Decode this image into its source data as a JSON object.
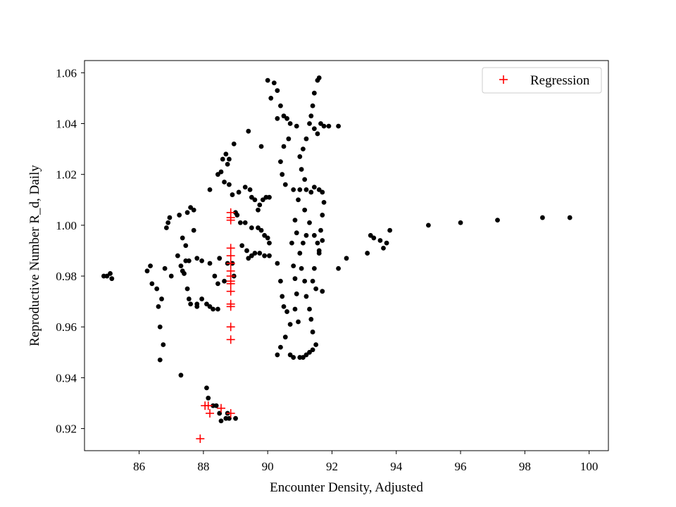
{
  "chart_data": {
    "type": "scatter",
    "title": "",
    "xlabel": "Encounter Density, Adjusted",
    "ylabel": "Reproductive Number R_d, Daily",
    "xlim": [
      84.3,
      100.6
    ],
    "ylim": [
      0.9113,
      1.0648
    ],
    "xticks": [
      86,
      88,
      90,
      92,
      94,
      96,
      98,
      100
    ],
    "yticks": [
      0.92,
      0.94,
      0.96,
      0.98,
      1.0,
      1.02,
      1.04,
      1.06
    ],
    "ytick_labels": [
      "0.92",
      "0.94",
      "0.96",
      "0.98",
      "1.00",
      "1.02",
      "1.04",
      "1.06"
    ],
    "grid": false,
    "legend_position": "top-right",
    "colors": {
      "observed": "#000000",
      "regression": "#ff0000"
    },
    "series": [
      {
        "marker": "dot",
        "color": "#000000",
        "points": [
          [
            84.9,
            0.98
          ],
          [
            85.0,
            0.98
          ],
          [
            85.1,
            0.981
          ],
          [
            85.15,
            0.979
          ],
          [
            86.25,
            0.982
          ],
          [
            86.35,
            0.984
          ],
          [
            86.4,
            0.977
          ],
          [
            86.55,
            0.975
          ],
          [
            86.6,
            0.968
          ],
          [
            86.7,
            0.971
          ],
          [
            86.65,
            0.96
          ],
          [
            86.75,
            0.953
          ],
          [
            86.65,
            0.947
          ],
          [
            86.8,
            0.983
          ],
          [
            87.0,
            0.98
          ],
          [
            87.3,
            0.941
          ],
          [
            86.85,
            0.999
          ],
          [
            86.9,
            1.001
          ],
          [
            86.95,
            1.003
          ],
          [
            87.25,
            1.004
          ],
          [
            87.6,
            1.007
          ],
          [
            87.7,
            1.006
          ],
          [
            87.5,
            1.005
          ],
          [
            87.2,
            0.988
          ],
          [
            87.3,
            0.984
          ],
          [
            87.35,
            0.982
          ],
          [
            87.4,
            0.981
          ],
          [
            87.45,
            0.986
          ],
          [
            87.55,
            0.986
          ],
          [
            87.35,
            0.995
          ],
          [
            87.45,
            0.992
          ],
          [
            87.7,
            0.998
          ],
          [
            87.8,
            0.987
          ],
          [
            87.5,
            0.975
          ],
          [
            87.55,
            0.971
          ],
          [
            87.6,
            0.969
          ],
          [
            87.8,
            0.968
          ],
          [
            87.8,
            0.969
          ],
          [
            87.95,
            0.971
          ],
          [
            88.1,
            0.969
          ],
          [
            88.2,
            0.968
          ],
          [
            88.3,
            0.967
          ],
          [
            88.45,
            0.967
          ],
          [
            87.95,
            0.986
          ],
          [
            88.2,
            0.985
          ],
          [
            88.35,
            0.98
          ],
          [
            88.45,
            0.977
          ],
          [
            88.5,
            0.987
          ],
          [
            88.65,
            0.978
          ],
          [
            88.75,
            0.985
          ],
          [
            88.9,
            0.985
          ],
          [
            88.95,
            0.98
          ],
          [
            88.1,
            0.936
          ],
          [
            88.15,
            0.932
          ],
          [
            88.3,
            0.929
          ],
          [
            88.4,
            0.929
          ],
          [
            88.5,
            0.926
          ],
          [
            88.55,
            0.923
          ],
          [
            88.7,
            0.924
          ],
          [
            88.75,
            0.926
          ],
          [
            88.8,
            0.924
          ],
          [
            89.0,
            0.924
          ],
          [
            88.2,
            1.014
          ],
          [
            88.45,
            1.02
          ],
          [
            88.55,
            1.021
          ],
          [
            88.6,
            1.026
          ],
          [
            88.7,
            1.028
          ],
          [
            88.75,
            1.024
          ],
          [
            88.8,
            1.026
          ],
          [
            88.95,
            1.032
          ],
          [
            88.65,
            1.017
          ],
          [
            88.8,
            1.016
          ],
          [
            88.9,
            1.012
          ],
          [
            89.0,
            1.005
          ],
          [
            89.05,
            1.004
          ],
          [
            89.15,
            1.001
          ],
          [
            89.1,
            1.013
          ],
          [
            89.3,
            1.015
          ],
          [
            89.45,
            1.014
          ],
          [
            89.4,
            1.037
          ],
          [
            89.8,
            1.031
          ],
          [
            89.5,
            1.011
          ],
          [
            89.6,
            1.01
          ],
          [
            89.75,
            1.008
          ],
          [
            89.85,
            1.01
          ],
          [
            89.95,
            1.011
          ],
          [
            90.05,
            1.011
          ],
          [
            89.7,
            1.006
          ],
          [
            89.3,
            1.001
          ],
          [
            89.5,
            0.999
          ],
          [
            89.7,
            0.999
          ],
          [
            89.8,
            0.998
          ],
          [
            89.9,
            0.996
          ],
          [
            90.0,
            0.995
          ],
          [
            90.05,
            0.993
          ],
          [
            89.2,
            0.992
          ],
          [
            89.35,
            0.99
          ],
          [
            89.5,
            0.988
          ],
          [
            89.6,
            0.989
          ],
          [
            89.75,
            0.989
          ],
          [
            89.9,
            0.988
          ],
          [
            90.05,
            0.988
          ],
          [
            89.4,
            0.987
          ],
          [
            90.0,
            1.057
          ],
          [
            90.2,
            1.056
          ],
          [
            90.3,
            1.053
          ],
          [
            90.1,
            1.05
          ],
          [
            90.4,
            1.047
          ],
          [
            90.5,
            1.043
          ],
          [
            90.3,
            1.042
          ],
          [
            90.6,
            1.042
          ],
          [
            90.7,
            1.04
          ],
          [
            90.9,
            1.039
          ],
          [
            90.65,
            1.034
          ],
          [
            90.5,
            1.031
          ],
          [
            90.4,
            1.025
          ],
          [
            90.45,
            1.02
          ],
          [
            90.55,
            1.016
          ],
          [
            90.3,
            0.985
          ],
          [
            90.4,
            0.978
          ],
          [
            90.45,
            0.972
          ],
          [
            90.5,
            0.968
          ],
          [
            90.6,
            0.966
          ],
          [
            90.7,
            0.961
          ],
          [
            90.55,
            0.956
          ],
          [
            90.4,
            0.952
          ],
          [
            90.3,
            0.949
          ],
          [
            90.7,
            0.949
          ],
          [
            90.8,
            0.948
          ],
          [
            90.8,
            1.014
          ],
          [
            90.95,
            1.01
          ],
          [
            90.85,
            1.002
          ],
          [
            90.9,
            0.997
          ],
          [
            90.75,
            0.993
          ],
          [
            90.8,
            0.984
          ],
          [
            90.85,
            0.979
          ],
          [
            90.9,
            0.973
          ],
          [
            90.85,
            0.967
          ],
          [
            90.95,
            0.962
          ],
          [
            91.0,
            0.948
          ],
          [
            91.1,
            0.948
          ],
          [
            91.2,
            0.949
          ],
          [
            91.3,
            0.95
          ],
          [
            91.4,
            0.951
          ],
          [
            91.5,
            0.953
          ],
          [
            91.4,
            0.958
          ],
          [
            91.35,
            0.963
          ],
          [
            91.3,
            0.967
          ],
          [
            91.2,
            0.972
          ],
          [
            91.15,
            0.978
          ],
          [
            91.05,
            0.983
          ],
          [
            91.0,
            0.989
          ],
          [
            91.1,
            0.993
          ],
          [
            91.2,
            0.996
          ],
          [
            91.6,
            1.058
          ],
          [
            91.55,
            1.057
          ],
          [
            91.45,
            1.052
          ],
          [
            91.4,
            1.047
          ],
          [
            91.35,
            1.043
          ],
          [
            91.3,
            1.04
          ],
          [
            91.45,
            1.038
          ],
          [
            91.55,
            1.036
          ],
          [
            91.65,
            1.04
          ],
          [
            91.75,
            1.039
          ],
          [
            91.9,
            1.039
          ],
          [
            92.2,
            1.039
          ],
          [
            91.2,
            1.034
          ],
          [
            91.1,
            1.03
          ],
          [
            91.0,
            1.027
          ],
          [
            91.05,
            1.022
          ],
          [
            91.15,
            1.018
          ],
          [
            91.2,
            1.014
          ],
          [
            91.35,
            1.013
          ],
          [
            91.45,
            1.015
          ],
          [
            91.6,
            1.014
          ],
          [
            91.7,
            1.013
          ],
          [
            91.75,
            1.009
          ],
          [
            91.7,
            1.004
          ],
          [
            91.65,
            0.998
          ],
          [
            91.7,
            0.994
          ],
          [
            91.6,
            0.989
          ],
          [
            91.45,
            0.983
          ],
          [
            91.4,
            0.978
          ],
          [
            91.5,
            0.975
          ],
          [
            91.7,
            0.974
          ],
          [
            91.0,
            1.014
          ],
          [
            91.15,
            1.006
          ],
          [
            91.3,
            1.001
          ],
          [
            91.45,
            0.996
          ],
          [
            91.55,
            0.993
          ],
          [
            91.6,
            0.99
          ],
          [
            92.2,
            0.983
          ],
          [
            92.45,
            0.987
          ],
          [
            93.1,
            0.989
          ],
          [
            93.2,
            0.996
          ],
          [
            93.3,
            0.995
          ],
          [
            93.5,
            0.994
          ],
          [
            93.7,
            0.993
          ],
          [
            93.8,
            0.998
          ],
          [
            93.6,
            0.991
          ],
          [
            95.0,
            1.0
          ],
          [
            96.0,
            1.001
          ],
          [
            97.15,
            1.002
          ],
          [
            98.55,
            1.003
          ],
          [
            99.4,
            1.003
          ]
        ]
      },
      {
        "name": "Regression",
        "marker": "plus",
        "color": "#ff0000",
        "points": [
          [
            87.9,
            0.916
          ],
          [
            88.05,
            0.929
          ],
          [
            88.15,
            0.929
          ],
          [
            88.2,
            0.926
          ],
          [
            88.55,
            0.928
          ],
          [
            88.85,
            0.926
          ],
          [
            88.85,
            1.005
          ],
          [
            88.85,
            1.003
          ],
          [
            88.85,
            1.002
          ],
          [
            88.85,
            0.991
          ],
          [
            88.85,
            0.988
          ],
          [
            88.85,
            0.985
          ],
          [
            88.85,
            0.982
          ],
          [
            88.85,
            0.98
          ],
          [
            88.85,
            0.978
          ],
          [
            88.85,
            0.977
          ],
          [
            88.85,
            0.974
          ],
          [
            88.85,
            0.969
          ],
          [
            88.85,
            0.968
          ],
          [
            88.85,
            0.96
          ],
          [
            88.85,
            0.955
          ]
        ]
      }
    ]
  }
}
